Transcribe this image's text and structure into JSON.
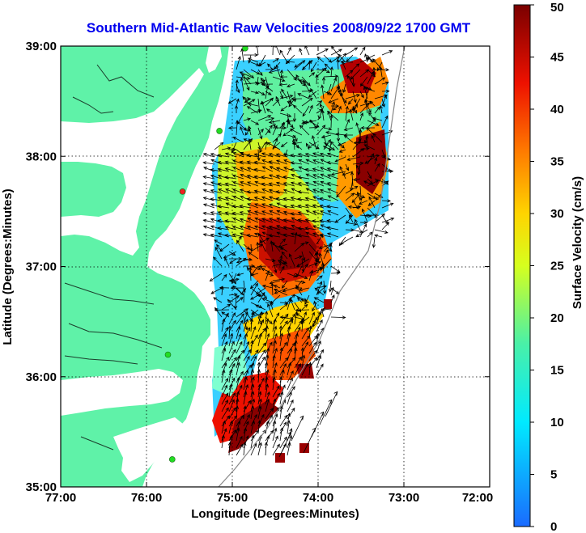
{
  "title": "Southern Mid-Atlantic Raw Velocities 2008/09/22 1700 GMT",
  "map": {
    "xlabel": "Longitude (Degrees:Minutes)",
    "ylabel": "Latitude (Degrees:Minutes)",
    "lon_range": [
      -77,
      -72
    ],
    "lat_range": [
      35,
      39
    ],
    "x_ticks": [
      {
        "value": -77,
        "label": "77:00"
      },
      {
        "value": -76,
        "label": "76:00"
      },
      {
        "value": -75,
        "label": "75:00"
      },
      {
        "value": -74,
        "label": "74:00"
      },
      {
        "value": -73,
        "label": "73:00"
      },
      {
        "value": -72,
        "label": "72:00"
      }
    ],
    "y_ticks": [
      {
        "value": 35,
        "label": "35:00"
      },
      {
        "value": 36,
        "label": "36:00"
      },
      {
        "value": 37,
        "label": "37:00"
      },
      {
        "value": 38,
        "label": "38:00"
      },
      {
        "value": 39,
        "label": "39:00"
      }
    ],
    "grid": "dotted",
    "land_color": "#5ff2a8",
    "water_color": "#ffffff",
    "stations": [
      {
        "lon": -74.85,
        "lat": 38.98,
        "color": "#22dd22"
      },
      {
        "lon": -75.15,
        "lat": 38.23,
        "color": "#22dd22"
      },
      {
        "lon": -75.58,
        "lat": 37.68,
        "color": "#ee2222"
      },
      {
        "lon": -75.75,
        "lat": 36.2,
        "color": "#22dd22"
      },
      {
        "lon": -75.7,
        "lat": 35.25,
        "color": "#22dd22"
      }
    ]
  },
  "colorbar": {
    "label": "Surface Velocity (cm/s)",
    "min": 0,
    "max": 50,
    "ticks": [
      {
        "value": 0,
        "label": "0"
      },
      {
        "value": 5,
        "label": "5"
      },
      {
        "value": 10,
        "label": "10"
      },
      {
        "value": 15,
        "label": "15"
      },
      {
        "value": 20,
        "label": "20"
      },
      {
        "value": 25,
        "label": "25"
      },
      {
        "value": 30,
        "label": "30"
      },
      {
        "value": 35,
        "label": "35"
      },
      {
        "value": 40,
        "label": "40"
      },
      {
        "value": 45,
        "label": "45"
      },
      {
        "value": 50,
        "label": "50"
      }
    ]
  }
}
